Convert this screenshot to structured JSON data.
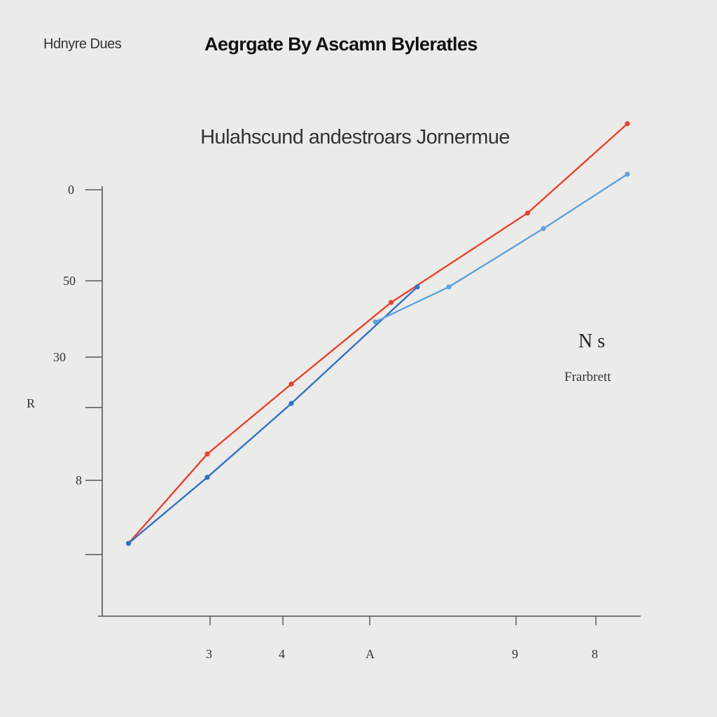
{
  "header": {
    "left_label": "Hdnyre Dues",
    "right_label": "Aegrgate By Ascamn Byleratles"
  },
  "chart_data": {
    "type": "line",
    "title": "Hulahscund andestroars Jornermue",
    "xlabel": "",
    "ylabel": "R",
    "x_ticks": [
      "3",
      "4",
      "A",
      "9",
      "8"
    ],
    "y_ticks": [
      "0",
      "50",
      "30",
      "",
      "8",
      ""
    ],
    "legend": {
      "heading": "N s",
      "entries": [
        "Frarbrett"
      ]
    },
    "grid": false,
    "colors": {
      "red": "#e8412e",
      "blue": "#2f72c4",
      "light_blue": "#5fa2dd"
    },
    "series": [
      {
        "color": "red",
        "x": [
          0.05,
          0.2,
          0.36,
          0.55,
          0.81,
          1.0
        ],
        "y": [
          0.09,
          0.32,
          0.5,
          0.71,
          0.94,
          1.17
        ]
      },
      {
        "color": "blue",
        "x": [
          0.05,
          0.2,
          0.36,
          0.6
        ],
        "y": [
          0.09,
          0.26,
          0.45,
          0.75
        ]
      },
      {
        "color": "light_blue",
        "x": [
          0.52,
          0.66,
          0.84,
          1.0
        ],
        "y": [
          0.66,
          0.75,
          0.9,
          1.04
        ]
      }
    ]
  }
}
